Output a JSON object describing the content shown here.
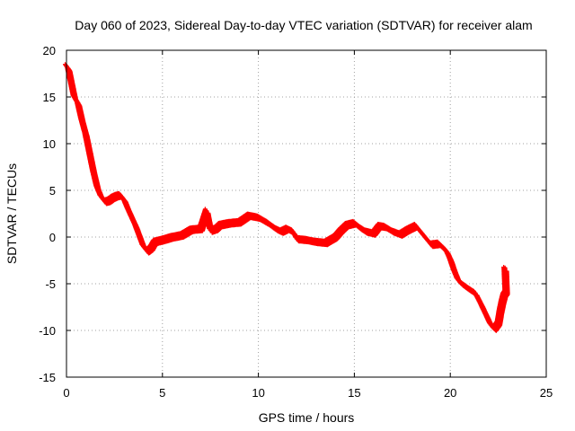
{
  "chart_data": {
    "type": "scatter",
    "title": "Day 060 of 2023, Sidereal Day-to-day VTEC variation (SDTVAR) for receiver alam",
    "xlabel": "GPS time / hours",
    "ylabel": "SDTVAR / TECUs",
    "xlim": [
      0,
      25
    ],
    "ylim": [
      -15,
      20
    ],
    "xticks": [
      0,
      5,
      10,
      15,
      20,
      25
    ],
    "yticks": [
      -15,
      -10,
      -5,
      0,
      5,
      10,
      15,
      20
    ],
    "grid": true,
    "marker": "plus",
    "series": [
      {
        "name": "SDTVAR",
        "color": "#ff0000",
        "points": [
          [
            0.0,
            18.3
          ],
          [
            0.1,
            18.0
          ],
          [
            0.2,
            17.0
          ],
          [
            0.3,
            16.0
          ],
          [
            0.4,
            15.0
          ],
          [
            0.6,
            14.3
          ],
          [
            0.8,
            12.5
          ],
          [
            1.0,
            11.0
          ],
          [
            1.2,
            9.0
          ],
          [
            1.4,
            7.0
          ],
          [
            1.6,
            5.3
          ],
          [
            1.8,
            4.3
          ],
          [
            2.0,
            3.8
          ],
          [
            2.2,
            3.9
          ],
          [
            2.4,
            4.2
          ],
          [
            2.6,
            4.4
          ],
          [
            2.8,
            4.5
          ],
          [
            3.0,
            4.0
          ],
          [
            3.2,
            3.0
          ],
          [
            3.4,
            2.1
          ],
          [
            3.6,
            1.2
          ],
          [
            3.8,
            0.1
          ],
          [
            4.0,
            -1.0
          ],
          [
            4.2,
            -1.5
          ],
          [
            4.4,
            -1.2
          ],
          [
            4.6,
            -0.5
          ],
          [
            5.0,
            -0.3
          ],
          [
            5.5,
            0.0
          ],
          [
            6.0,
            0.2
          ],
          [
            6.5,
            0.8
          ],
          [
            7.0,
            0.9
          ],
          [
            7.3,
            2.8
          ],
          [
            7.5,
            0.7
          ],
          [
            7.8,
            0.9
          ],
          [
            8.0,
            1.3
          ],
          [
            8.5,
            1.5
          ],
          [
            9.0,
            1.6
          ],
          [
            9.5,
            2.3
          ],
          [
            10.0,
            2.1
          ],
          [
            10.5,
            1.5
          ],
          [
            10.9,
            0.9
          ],
          [
            11.2,
            0.6
          ],
          [
            11.5,
            0.9
          ],
          [
            11.8,
            0.6
          ],
          [
            12.0,
            -0.2
          ],
          [
            12.5,
            -0.3
          ],
          [
            13.0,
            -0.5
          ],
          [
            13.5,
            -0.6
          ],
          [
            14.0,
            0.0
          ],
          [
            14.3,
            0.7
          ],
          [
            14.6,
            1.3
          ],
          [
            15.0,
            1.5
          ],
          [
            15.3,
            1.0
          ],
          [
            15.6,
            0.6
          ],
          [
            16.0,
            0.4
          ],
          [
            16.3,
            1.2
          ],
          [
            16.6,
            1.1
          ],
          [
            17.0,
            0.6
          ],
          [
            17.4,
            0.3
          ],
          [
            17.8,
            0.8
          ],
          [
            18.2,
            1.2
          ],
          [
            18.6,
            0.2
          ],
          [
            19.0,
            -0.8
          ],
          [
            19.4,
            -0.7
          ],
          [
            19.8,
            -1.5
          ],
          [
            20.0,
            -2.4
          ],
          [
            20.2,
            -3.6
          ],
          [
            20.4,
            -4.6
          ],
          [
            20.6,
            -5.0
          ],
          [
            20.8,
            -5.3
          ],
          [
            21.0,
            -5.6
          ],
          [
            21.3,
            -6.0
          ],
          [
            21.6,
            -7.2
          ],
          [
            21.9,
            -8.5
          ],
          [
            22.1,
            -9.4
          ],
          [
            22.3,
            -9.8
          ],
          [
            22.5,
            -9.2
          ],
          [
            22.6,
            -8.0
          ],
          [
            22.7,
            -7.0
          ],
          [
            22.8,
            -6.2
          ],
          [
            22.9,
            -5.9
          ],
          [
            22.85,
            -3.3
          ]
        ]
      }
    ]
  }
}
